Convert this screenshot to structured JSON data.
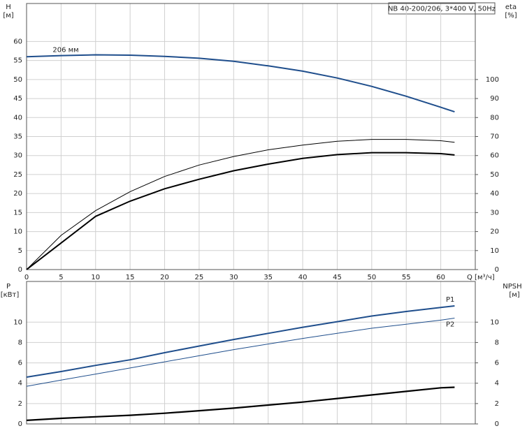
{
  "chart_data": [
    {
      "type": "line",
      "title": "NB 40-200/206, 3*400 V, 50Hz",
      "ylabel": "H",
      "yunit": "[м]",
      "y2label": "eta",
      "y2unit": "[%]",
      "xlabel": "Q [м³/ч]",
      "x": [
        0,
        5,
        10,
        15,
        20,
        25,
        30,
        35,
        40,
        45,
        50,
        55,
        60,
        62
      ],
      "xlim": [
        0,
        65
      ],
      "xticks": [
        0,
        5,
        10,
        15,
        20,
        25,
        30,
        35,
        40,
        45,
        50,
        55,
        60
      ],
      "ylim": [
        0,
        70
      ],
      "yticks": [
        0,
        5,
        10,
        15,
        20,
        25,
        30,
        35,
        40,
        45,
        50,
        55,
        60
      ],
      "y2lim": [
        0,
        140
      ],
      "y2ticks": [
        0,
        10,
        20,
        30,
        40,
        50,
        60,
        70,
        80,
        90,
        100
      ],
      "grid": true,
      "series": [
        {
          "name": "206 мм",
          "color": "#1f4e8c",
          "values": [
            56,
            56.3,
            56.5,
            56.4,
            56.1,
            55.6,
            54.8,
            53.6,
            52.2,
            50.4,
            48.2,
            45.6,
            42.7,
            41.5
          ]
        },
        {
          "color": "#000000",
          "axis": "y2",
          "values": [
            0,
            18,
            31,
            41,
            49,
            55,
            59.5,
            63,
            65.5,
            67.5,
            68.5,
            68.5,
            67.8,
            67
          ]
        },
        {
          "color": "#000000",
          "axis": "y2",
          "values": [
            0,
            14,
            28,
            36,
            42.5,
            47.5,
            52,
            55.5,
            58.5,
            60.5,
            61.5,
            61.5,
            61,
            60.3
          ]
        }
      ]
    },
    {
      "type": "line",
      "ylabel": "P",
      "yunit": "[кВт]",
      "y2label": "NPSH",
      "y2unit": "[м]",
      "x": [
        0,
        5,
        10,
        15,
        20,
        25,
        30,
        35,
        40,
        45,
        50,
        55,
        60,
        62
      ],
      "ylim": [
        0,
        14
      ],
      "yticks": [
        0,
        2,
        4,
        6,
        8,
        10
      ],
      "y2lim": [
        0,
        14
      ],
      "y2ticks": [
        0,
        2,
        4,
        6,
        8,
        10
      ],
      "grid": true,
      "series": [
        {
          "name": "P1",
          "color": "#1f4e8c",
          "values": [
            4.6,
            5.15,
            5.75,
            6.3,
            7.0,
            7.65,
            8.3,
            8.9,
            9.5,
            10.05,
            10.6,
            11.05,
            11.45,
            11.6
          ]
        },
        {
          "name": "P2",
          "color": "#1f4e8c",
          "values": [
            3.7,
            4.3,
            4.9,
            5.5,
            6.1,
            6.7,
            7.3,
            7.85,
            8.4,
            8.9,
            9.4,
            9.8,
            10.2,
            10.4
          ]
        },
        {
          "color": "#000000",
          "axis": "y2",
          "values": [
            0.35,
            0.55,
            0.7,
            0.85,
            1.05,
            1.3,
            1.55,
            1.85,
            2.15,
            2.5,
            2.85,
            3.2,
            3.55,
            3.6
          ]
        }
      ]
    }
  ]
}
